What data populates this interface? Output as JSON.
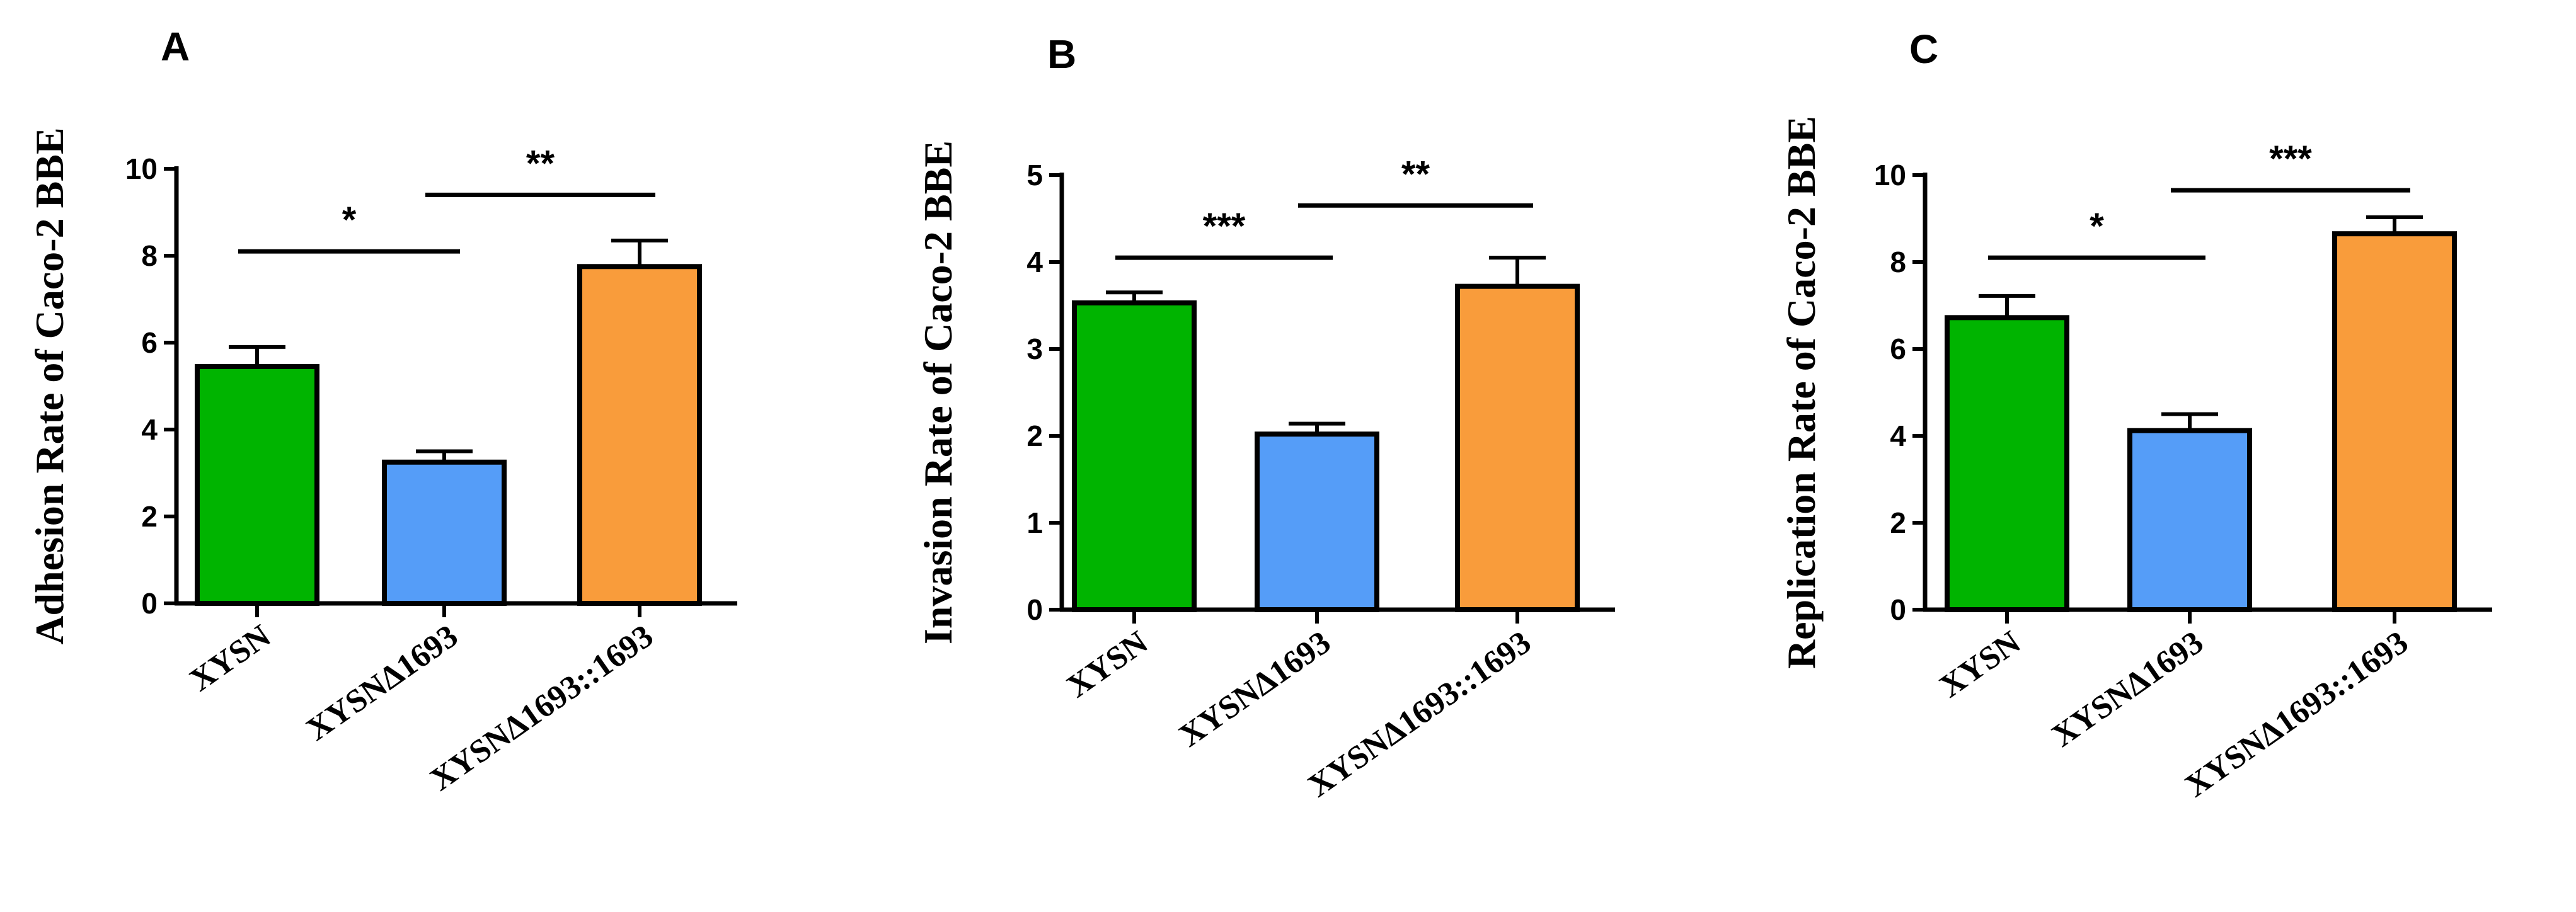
{
  "chart_data": [
    {
      "type": "bar",
      "panel": "A",
      "ylabel": "Adhesion Rate of Caco-2 BBE",
      "categories": [
        "XYSN",
        "XYSNΔ1693",
        "XYSNΔ1693::1693"
      ],
      "values": [
        5.45,
        3.25,
        7.75
      ],
      "errors": [
        0.45,
        0.25,
        0.6
      ],
      "colors": [
        "#00b400",
        "#559df8",
        "#f99c3b"
      ],
      "ylim": [
        0,
        10
      ],
      "yticks": [
        "0",
        "2",
        "4",
        "6",
        "8",
        "10"
      ],
      "significance": [
        {
          "from": 0,
          "to": 1,
          "label": "*",
          "y": 8.1
        },
        {
          "from": 1,
          "to": 2,
          "label": "**",
          "y": 9.4
        }
      ]
    },
    {
      "type": "bar",
      "panel": "B",
      "ylabel": "Invasion Rate of Caco-2 BBE",
      "categories": [
        "XYSN",
        "XYSNΔ1693",
        "XYSNΔ1693::1693"
      ],
      "values": [
        3.53,
        2.02,
        3.72
      ],
      "errors": [
        0.12,
        0.12,
        0.33
      ],
      "colors": [
        "#00b400",
        "#559df8",
        "#f99c3b"
      ],
      "ylim": [
        0,
        5
      ],
      "yticks": [
        "0",
        "1",
        "2",
        "3",
        "4",
        "5"
      ],
      "significance": [
        {
          "from": 0,
          "to": 1,
          "label": "***",
          "y": 4.05
        },
        {
          "from": 1,
          "to": 2,
          "label": "**",
          "y": 4.65
        }
      ]
    },
    {
      "type": "bar",
      "panel": "C",
      "ylabel": "Replication Rate of Caco-2 BBE",
      "categories": [
        "XYSN",
        "XYSNΔ1693",
        "XYSNΔ1693::1693"
      ],
      "values": [
        6.72,
        4.12,
        8.65
      ],
      "errors": [
        0.5,
        0.38,
        0.38
      ],
      "colors": [
        "#00b400",
        "#559df8",
        "#f99c3b"
      ],
      "ylim": [
        0,
        10
      ],
      "yticks": [
        "0",
        "2",
        "4",
        "6",
        "8",
        "10"
      ],
      "significance": [
        {
          "from": 0,
          "to": 1,
          "label": "*",
          "y": 8.1
        },
        {
          "from": 1,
          "to": 2,
          "label": "***",
          "y": 9.65
        }
      ]
    }
  ]
}
